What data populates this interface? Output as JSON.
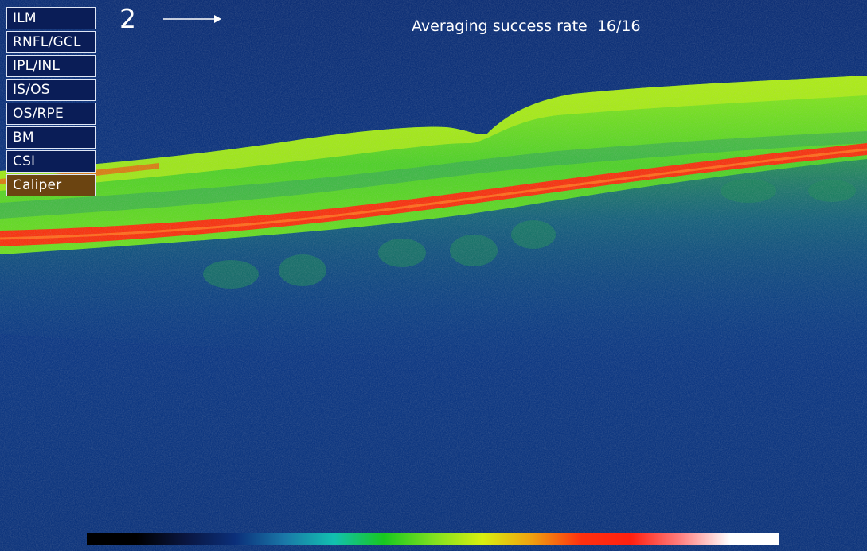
{
  "layers": [
    {
      "label": "ILM",
      "active": false
    },
    {
      "label": "RNFL/GCL",
      "active": false
    },
    {
      "label": "IPL/INL",
      "active": false
    },
    {
      "label": "IS/OS",
      "active": false
    },
    {
      "label": "OS/RPE",
      "active": false
    },
    {
      "label": "BM",
      "active": false
    },
    {
      "label": "CSI",
      "active": false
    },
    {
      "label": "Caliper",
      "active": true
    }
  ],
  "scan": {
    "number": "2",
    "direction_icon": "right-arrow-icon"
  },
  "averaging": {
    "label": "Averaging success rate",
    "value": "16/16"
  },
  "colors": {
    "background": "#0e3a86",
    "retina_green": "#5fd62a",
    "rpe_red": "#ff2a10",
    "highlight_yellow": "#d8f020"
  },
  "colorbar": {
    "stops": [
      "#000000",
      "#000000",
      "#0a1640",
      "#0b2f7a",
      "#1a78a8",
      "#12c0b0",
      "#18c820",
      "#7fe020",
      "#d8f010",
      "#f0a010",
      "#ff3010",
      "#ff2010",
      "#ff8080",
      "#ffffff",
      "#ffffff"
    ]
  }
}
